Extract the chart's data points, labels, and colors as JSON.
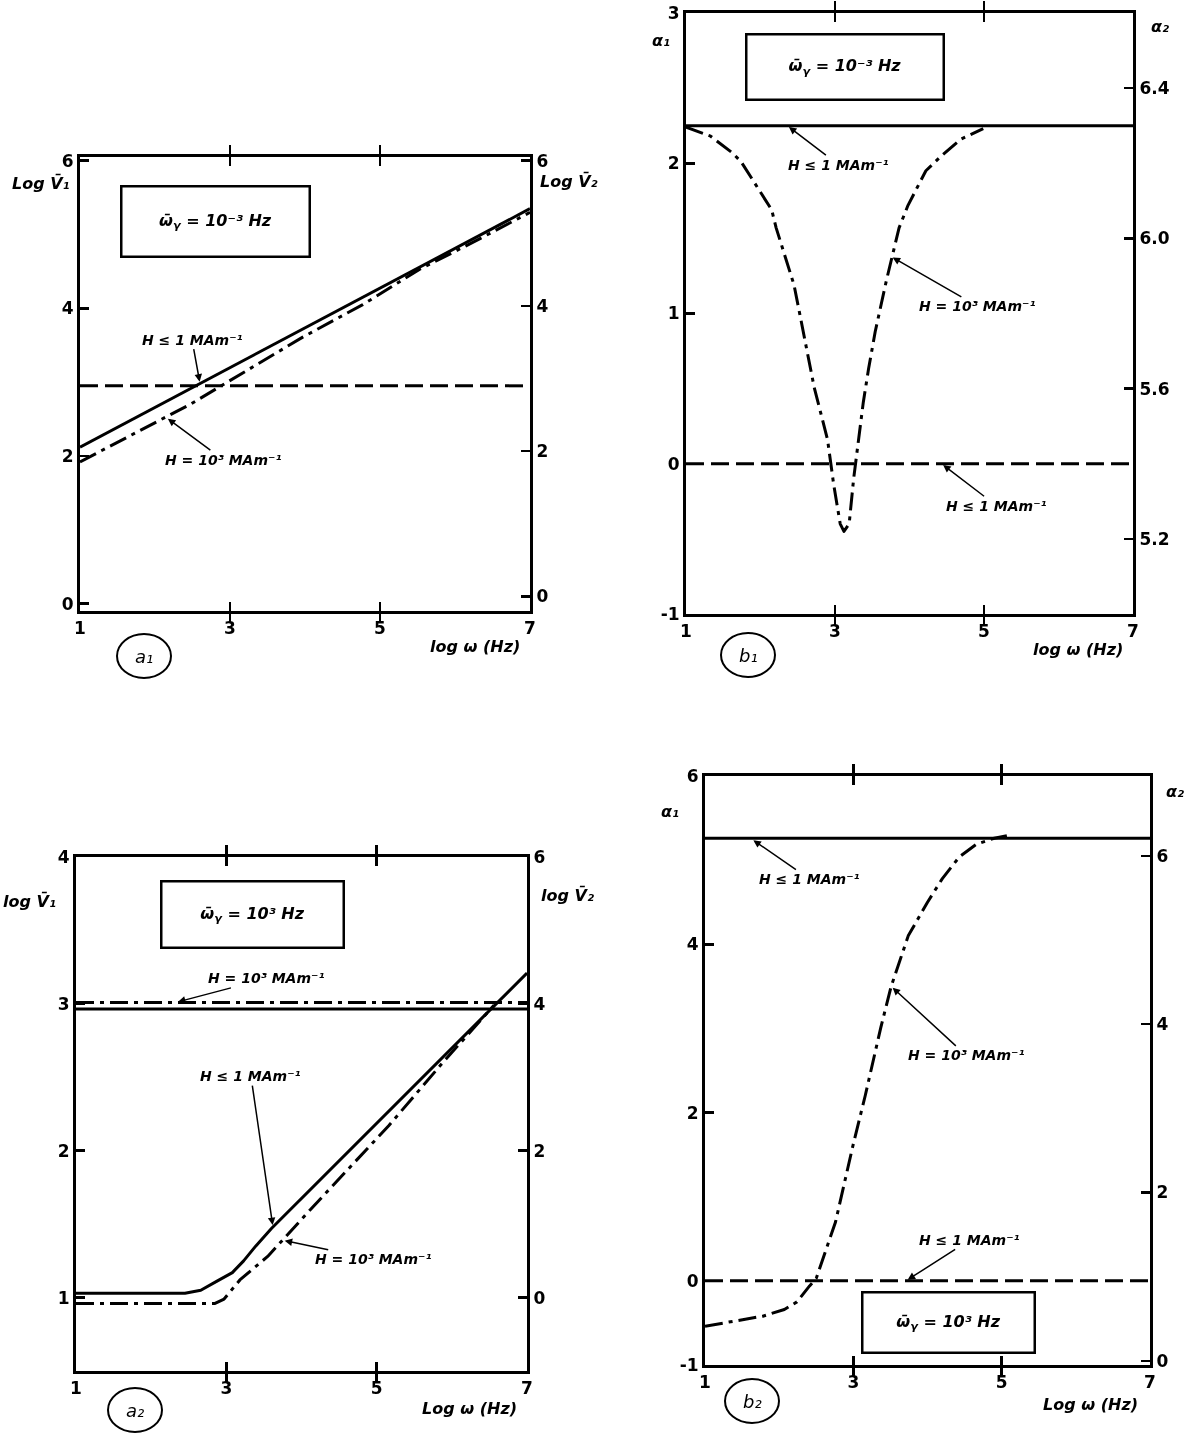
{
  "chart_data": [
    {
      "type": "line",
      "xlabel": "log ω (Hz)",
      "ylabel": "Log V̄₁",
      "y2label": "Log V̄₂",
      "xlim": [
        1,
        7
      ],
      "xticks": [
        1,
        3,
        5,
        7
      ],
      "ylim": [
        -0.1,
        6.05
      ],
      "yticks": [
        0,
        2,
        4,
        6
      ],
      "y2lim": [
        -0.2,
        6.05
      ],
      "y2ticks": [
        0,
        2,
        4,
        6
      ],
      "series": [
        {
          "color": "#000000",
          "line_style": "solid",
          "x": [
            1,
            7
          ],
          "values": [
            2.12,
            5.35
          ]
        },
        {
          "color": "#000000",
          "line_style": "dashdot",
          "x": [
            1,
            2.47,
            3.97,
            4.77,
            5.53,
            6.23,
            7
          ],
          "values": [
            1.92,
            2.7,
            3.61,
            4.05,
            4.53,
            4.89,
            5.3
          ]
        },
        {
          "color": "#000000",
          "line_style": "dashed",
          "axis": "y2",
          "x": [
            1,
            7
          ],
          "values": [
            2.9,
            2.9
          ]
        }
      ],
      "annotations": [
        "ω̄$_{γ}$ = 10⁻³ Hz",
        "a₁",
        {
          "text": "H ≤ 1 MAm⁻¹",
          "x": 2.6,
          "y": 2.98
        },
        {
          "text": "H = 10³ MAm⁻¹",
          "x": 2.15,
          "y": 2.52
        }
      ]
    },
    {
      "type": "line",
      "xlabel": "log ω (Hz)",
      "ylabel": "α₁",
      "y2label": "α₂",
      "xlim": [
        1,
        7
      ],
      "xticks": [
        1,
        3,
        5,
        7
      ],
      "ylim": [
        -1,
        3
      ],
      "yticks": [
        -1,
        0,
        1,
        2,
        3
      ],
      "y2lim": [
        5.0,
        6.6
      ],
      "y2ticks": [
        5.2,
        5.6,
        {
          "value": 6,
          "label": "6.0"
        },
        6.4
      ],
      "series": [
        {
          "color": "#000000",
          "line_style": "solid",
          "axis": "y2",
          "x": [
            1,
            7
          ],
          "values": [
            6.3,
            6.3
          ]
        },
        {
          "color": "#000000",
          "line_style": "dashdot",
          "x": [
            1,
            1.33,
            1.62,
            1.74,
            2.15,
            2.21,
            2.45,
            2.51,
            2.72,
            2.9,
            2.98,
            3.07,
            3.12,
            3.19,
            3.25,
            3.38,
            3.45,
            3.54,
            3.69,
            3.86,
            3.98,
            4.22,
            4.43,
            4.69,
            4.99
          ],
          "values": [
            2.24,
            2.18,
            2.07,
            2.01,
            1.69,
            1.57,
            1.19,
            1.04,
            0.51,
            0.16,
            -0.13,
            -0.4,
            -0.45,
            -0.4,
            -0.1,
            0.41,
            0.63,
            0.88,
            1.22,
            1.57,
            1.72,
            1.95,
            2.05,
            2.16,
            2.23
          ]
        },
        {
          "color": "#000000",
          "line_style": "dashed",
          "x": [
            1,
            7
          ],
          "values": [
            0,
            0
          ]
        }
      ],
      "annotations": [
        "ω̄$_{γ}$ = 10⁻³ Hz",
        "b₁",
        {
          "text": "H ≤ 1 MAm⁻¹",
          "x": 2.36,
          "y": 2.25
        },
        {
          "text": "H = 10³ MAm⁻¹",
          "x": 3.75,
          "y": 1.38
        },
        {
          "text": "H ≤ 1 MAm⁻¹",
          "x": 4.43,
          "y": 0
        }
      ]
    },
    {
      "type": "line",
      "xlabel": "Log ω (Hz)",
      "ylabel": "log V̄₁",
      "y2label": "log V̄₂",
      "xlim": [
        1,
        7
      ],
      "xticks": [
        1,
        3,
        5,
        7
      ],
      "ylim": [
        0.5,
        4
      ],
      "yticks": [
        1,
        2,
        3,
        4
      ],
      "y2lim": [
        -1,
        6
      ],
      "y2ticks": [
        0,
        2,
        4,
        6
      ],
      "series": [
        {
          "color": "#000000",
          "line_style": "solid",
          "axis": "y2",
          "x": [
            1,
            7
          ],
          "values": [
            3.93,
            3.93
          ]
        },
        {
          "color": "#000000",
          "line_style": "dashdot",
          "axis": "y2",
          "x": [
            1,
            7
          ],
          "values": [
            4.02,
            4.02
          ]
        },
        {
          "color": "#000000",
          "line_style": "solid",
          "x": [
            1,
            2.45,
            2.66,
            2.87,
            3.08,
            3.23,
            3.39,
            3.6,
            7
          ],
          "values": [
            1.03,
            1.03,
            1.05,
            1.11,
            1.17,
            1.25,
            1.35,
            1.47,
            3.21
          ]
        },
        {
          "color": "#000000",
          "line_style": "dashdot",
          "x": [
            1,
            2.85,
            2.97,
            3.18,
            3.55,
            4.12,
            5.16,
            5.88,
            6.56
          ],
          "values": [
            0.96,
            0.96,
            0.99,
            1.12,
            1.28,
            1.6,
            2.17,
            2.6,
            2.99
          ]
        }
      ],
      "annotations": [
        "ω̄$_{γ}$ = 10³ Hz",
        "a₂",
        {
          "text": "H = 10³ MAm⁻¹",
          "x": 2.33,
          "y": 3.01
        },
        {
          "text": "H ≤ 1 MAm⁻¹",
          "x": 3.62,
          "y": 1.48
        },
        {
          "text": "H = 10³ MAm⁻¹",
          "x": 3.75,
          "y": 1.39
        }
      ]
    },
    {
      "type": "line",
      "xlabel": "Log ω (Hz)",
      "ylabel": "α₁",
      "y2label": "α₂",
      "xlim": [
        1,
        7
      ],
      "xticks": [
        1,
        3,
        5,
        7
      ],
      "ylim": [
        -1,
        6
      ],
      "yticks": [
        -1,
        0,
        2,
        4,
        6
      ],
      "y2lim": [
        -0.05,
        6.95
      ],
      "y2ticks": [
        0,
        2,
        4,
        6
      ],
      "series": [
        {
          "color": "#000000",
          "line_style": "solid",
          "axis": "y2",
          "x": [
            1,
            7
          ],
          "values": [
            6.21,
            6.21
          ]
        },
        {
          "color": "#000000",
          "line_style": "dashdot",
          "x": [
            1,
            1.32,
            1.78,
            2.07,
            2.24,
            2.41,
            2.5,
            2.76,
            2.99,
            3.16,
            3.37,
            3.51,
            3.74,
            4.0,
            4.2,
            4.43,
            4.66,
            4.9,
            5.07
          ],
          "values": [
            -0.54,
            -0.49,
            -0.42,
            -0.34,
            -0.25,
            -0.06,
            0.03,
            0.7,
            1.59,
            2.2,
            3.01,
            3.5,
            4.1,
            4.5,
            4.78,
            5.04,
            5.19,
            5.26,
            5.29
          ]
        },
        {
          "color": "#000000",
          "line_style": "dashed",
          "x": [
            1,
            7
          ],
          "values": [
            0,
            0
          ]
        }
      ],
      "annotations": [
        "ω̄$_{γ}$ = 10³ Hz",
        "b₂",
        {
          "text": "H ≤ 1 MAm⁻¹",
          "x": 1.63,
          "y": 5.25
        },
        {
          "text": "H = 10³ MAm⁻¹",
          "x": 3.51,
          "y": 3.5
        },
        {
          "text": "H ≤ 1 MAm⁻¹",
          "x": 3.71,
          "y": 0
        }
      ]
    }
  ]
}
